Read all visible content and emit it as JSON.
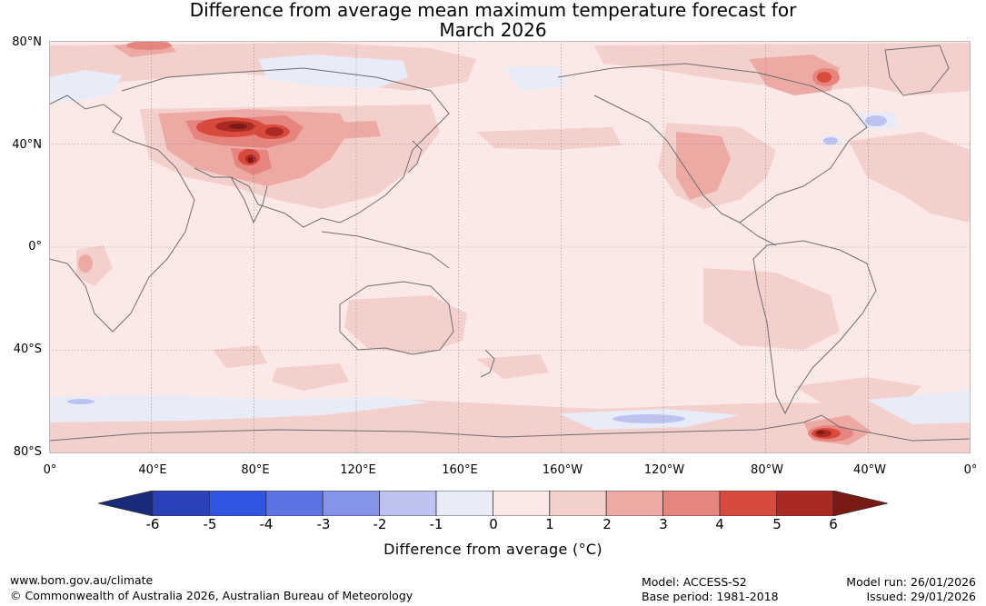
{
  "title_line1": "Difference from average mean maximum temperature forecast for",
  "title_line2": "March 2026",
  "lat_labels": [
    "80°N",
    "40°N",
    "0°",
    "40°S",
    "80°S"
  ],
  "lon_labels": [
    "0°",
    "40°E",
    "80°E",
    "120°E",
    "160°E",
    "160°W",
    "120°W",
    "80°W",
    "40°W",
    "0°"
  ],
  "colorbar": {
    "ticks": [
      "-6",
      "-5",
      "-4",
      "-3",
      "-2",
      "-1",
      "0",
      "1",
      "2",
      "3",
      "4",
      "5",
      "6"
    ],
    "colors": [
      "#1a2a7a",
      "#2a42b8",
      "#3055e0",
      "#5b73e3",
      "#8594e8",
      "#bcc3f0",
      "#e8ebf8",
      "#fbe9e7",
      "#f4d0cc",
      "#edaaa5",
      "#e6847e",
      "#d94a3e",
      "#a82a22",
      "#7a1a14"
    ],
    "label": "Difference from average (°C)"
  },
  "footer": {
    "url": "www.bom.gov.au/climate",
    "copyright": "© Commonwealth of Australia 2026, Australian Bureau of Meteorology",
    "model": "Model: ACCESS-S2",
    "base_period": "Base period: 1981-2018",
    "model_run": "Model run: 26/01/2026",
    "issued": "Issued: 29/01/2026"
  },
  "anomaly_regions": [
    {
      "name": "central-asia-warm",
      "level": 3
    },
    {
      "name": "mongolia-hot-core",
      "level": 6
    },
    {
      "name": "tibet-hot-core",
      "level": 6
    },
    {
      "name": "alaska-warm",
      "level": 3
    },
    {
      "name": "mexico-warm",
      "level": 3
    },
    {
      "name": "antarctic-peninsula-hot",
      "level": 6
    },
    {
      "name": "siberia-cool",
      "level": -1
    },
    {
      "name": "southern-ocean-cool",
      "level": -1
    }
  ]
}
